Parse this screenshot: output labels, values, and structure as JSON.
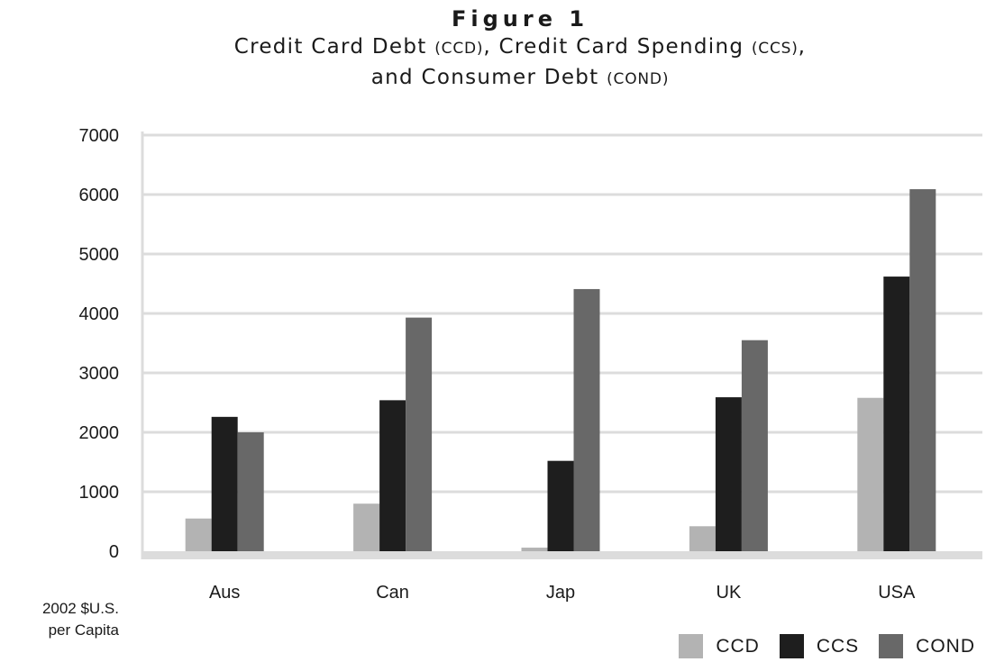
{
  "figure": {
    "label": "Figure 1",
    "title_line1_prefix": "Credit Card Debt ",
    "title_line1_ccd": "(CCD)",
    "title_line1_mid": ", Credit Card Spending ",
    "title_line1_ccs": "(CCS)",
    "title_line1_end": ",",
    "title_line2_prefix": "and Consumer Debt ",
    "title_line2_cond": "(COND)"
  },
  "unit_label": {
    "line1": "2002 $U.S.",
    "line2": "per Capita"
  },
  "chart_data": {
    "type": "bar",
    "categories": [
      "Aus",
      "Can",
      "Jap",
      "UK",
      "USA"
    ],
    "series": [
      {
        "name": "CCD",
        "color": "#b3b3b3",
        "values": [
          550,
          800,
          60,
          420,
          2580
        ]
      },
      {
        "name": "CCS",
        "color": "#1e1e1e",
        "values": [
          2260,
          2540,
          1520,
          2590,
          4620
        ]
      },
      {
        "name": "COND",
        "color": "#686868",
        "values": [
          2000,
          3930,
          4410,
          3550,
          6090
        ]
      }
    ],
    "ylim": [
      0,
      7000
    ],
    "yticks": [
      0,
      1000,
      2000,
      3000,
      4000,
      5000,
      6000,
      7000
    ],
    "grid": true,
    "legend_position": "bottom-right"
  }
}
